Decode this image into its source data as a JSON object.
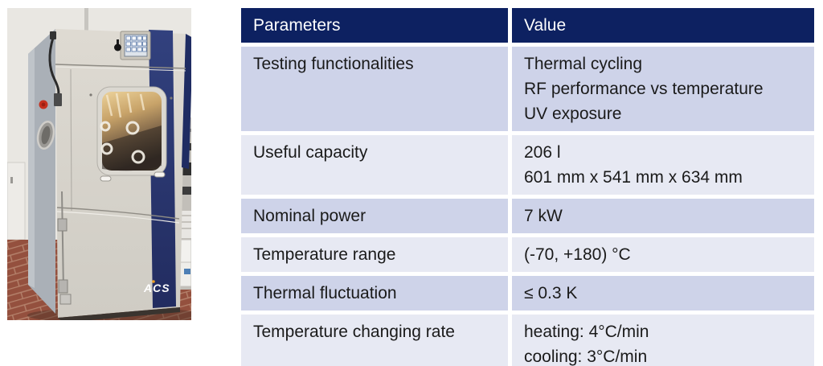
{
  "photo": {
    "description": "ACS environmental climate test chamber standing on a terracotta brick floor",
    "brand_label": "ACS",
    "colors": {
      "stripe_blue": "#2c3a78",
      "cabinet_gray": "#d8d4cc",
      "floor_brick": "#94503e",
      "window_amber": "#c8a369"
    }
  },
  "table": {
    "columns": [
      "Parameters",
      "Value"
    ],
    "rows": [
      {
        "shade": "dark",
        "parameter": "Testing functionalities",
        "value_lines": [
          "Thermal cycling",
          "RF performance vs temperature",
          "UV exposure"
        ]
      },
      {
        "shade": "light",
        "parameter": "Useful capacity",
        "value_lines": [
          "206 l",
          "601 mm x 541 mm x 634 mm"
        ]
      },
      {
        "shade": "dark",
        "parameter": "Nominal power",
        "value_lines": [
          "7 kW"
        ]
      },
      {
        "shade": "light",
        "parameter": "Temperature range",
        "value_lines": [
          "(-70, +180) °C"
        ]
      },
      {
        "shade": "dark",
        "parameter": "Thermal fluctuation",
        "value_lines": [
          "≤ 0.3 K"
        ]
      },
      {
        "shade": "light",
        "parameter": "Temperature changing rate",
        "value_lines": [
          "heating: 4°C/min",
          "cooling: 3°C/min"
        ]
      }
    ],
    "colors": {
      "header_bg": "#0d2161",
      "header_text": "#ffffff",
      "row_dark": "#ced3e9",
      "row_light": "#e7e9f3",
      "body_text": "#1a1a1a"
    }
  }
}
